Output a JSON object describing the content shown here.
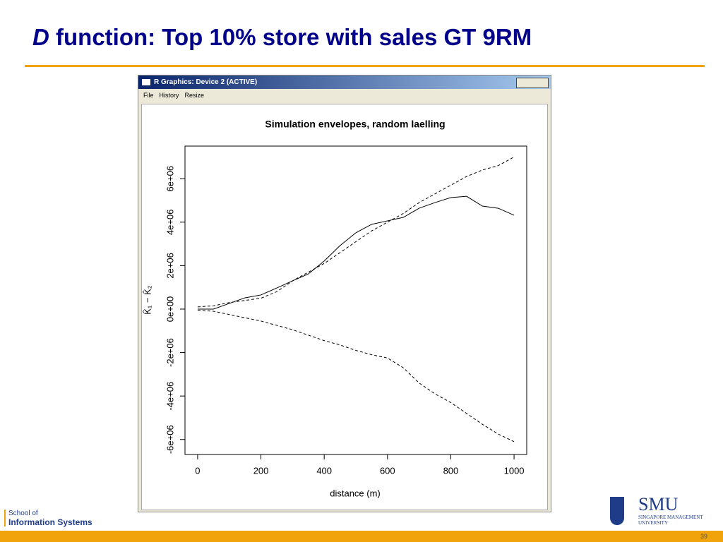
{
  "slide": {
    "title_italic": "D",
    "title_rest": " function: Top 10% store with sales GT 9RM"
  },
  "window": {
    "title": "R Graphics: Device 2 (ACTIVE)",
    "menu": [
      "File",
      "History",
      "Resize"
    ]
  },
  "chart_data": {
    "type": "line",
    "title": "Simulation envelopes, random laelling",
    "xlabel": "distance (m)",
    "ylabel": "K̂₁ − K̂₂",
    "x": [
      0,
      50,
      100,
      150,
      200,
      250,
      300,
      350,
      400,
      450,
      500,
      550,
      600,
      650,
      700,
      750,
      800,
      850,
      900,
      950,
      1000
    ],
    "series": [
      {
        "color": "#000000",
        "style": "solid",
        "values": [
          0,
          0,
          260000,
          520000,
          650000,
          970000,
          1300000,
          1620000,
          2210000,
          2920000,
          3510000,
          3900000,
          4060000,
          4220000,
          4640000,
          4900000,
          5130000,
          5190000,
          4740000,
          4640000,
          4320000
        ]
      },
      {
        "color": "#000000",
        "style": "dashed",
        "values": [
          100000,
          150000,
          300000,
          400000,
          500000,
          800000,
          1300000,
          1700000,
          2100000,
          2600000,
          3100000,
          3600000,
          4000000,
          4400000,
          4900000,
          5300000,
          5700000,
          6100000,
          6400000,
          6600000,
          7000000
        ]
      },
      {
        "color": "#000000",
        "style": "dashed",
        "values": [
          -50000,
          -100000,
          -250000,
          -400000,
          -550000,
          -750000,
          -950000,
          -1200000,
          -1450000,
          -1650000,
          -1900000,
          -2100000,
          -2250000,
          -2700000,
          -3400000,
          -3900000,
          -4300000,
          -4800000,
          -5300000,
          -5750000,
          -6100000
        ]
      }
    ],
    "xlim": [
      -40,
      1040
    ],
    "ylim": [
      -6690000,
      7500000
    ],
    "xticks": [
      0,
      200,
      400,
      600,
      800,
      1000
    ],
    "yticks": [
      {
        "value": -6000000,
        "label": "-6e+06"
      },
      {
        "value": -4000000,
        "label": "-4e+06"
      },
      {
        "value": -2000000,
        "label": "-2e+06"
      },
      {
        "value": 0,
        "label": "0e+00"
      },
      {
        "value": 2000000,
        "label": "2e+06"
      },
      {
        "value": 4000000,
        "label": "4e+06"
      },
      {
        "value": 6000000,
        "label": "6e+06"
      }
    ],
    "grid": false
  },
  "footer": {
    "school_of": "School of",
    "information_systems": "Information Systems",
    "logo": "SMU",
    "university_1": "SINGAPORE MANAGEMENT",
    "university_2": "UNIVERSITY",
    "page_number": "39"
  }
}
